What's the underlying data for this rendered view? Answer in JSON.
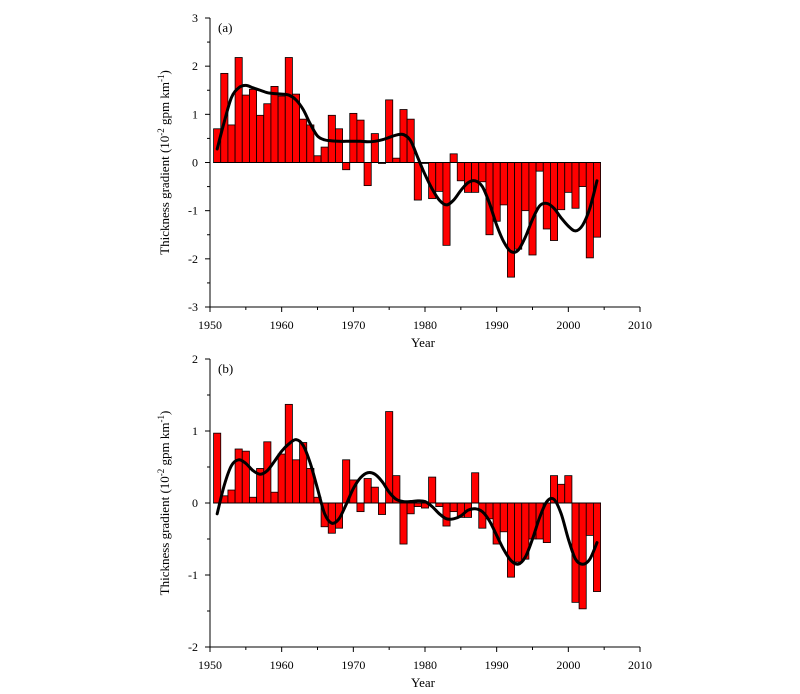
{
  "colors": {
    "bar_fill": "#ff0000",
    "bar_stroke": "#000000",
    "curve": "#000000",
    "axis": "#000000"
  },
  "chart_data": [
    {
      "type": "bar",
      "panel_label": "(a)",
      "xlabel": "Year",
      "ylabel_main": "Thickness gradient (10",
      "ylabel_exp1": "-2",
      "ylabel_mid": " gpm km",
      "ylabel_exp2": "-1",
      "ylabel_end": ")",
      "xlim": [
        1950,
        2010
      ],
      "ylim": [
        -3,
        3
      ],
      "xticks": [
        1950,
        1960,
        1970,
        1980,
        1990,
        2000,
        2010
      ],
      "yticks": [
        -3,
        -2,
        -1,
        0,
        1,
        2,
        3
      ],
      "grid": false,
      "legend": "none",
      "series": [
        {
          "type": "bar",
          "x": [
            1951,
            1952,
            1953,
            1954,
            1955,
            1956,
            1957,
            1958,
            1959,
            1960,
            1961,
            1962,
            1963,
            1964,
            1965,
            1966,
            1967,
            1968,
            1969,
            1970,
            1971,
            1972,
            1973,
            1974,
            1975,
            1976,
            1977,
            1978,
            1979,
            1980,
            1981,
            1982,
            1983,
            1984,
            1985,
            1986,
            1987,
            1988,
            1989,
            1990,
            1991,
            1992,
            1993,
            1994,
            1995,
            1996,
            1997,
            1998,
            1999,
            2000,
            2001,
            2002,
            2003,
            2004
          ],
          "values": [
            0.7,
            1.85,
            0.78,
            2.18,
            1.4,
            1.52,
            0.98,
            1.22,
            1.58,
            1.38,
            2.18,
            1.42,
            0.9,
            0.78,
            0.14,
            0.32,
            0.98,
            0.7,
            -0.15,
            1.02,
            0.88,
            -0.48,
            0.6,
            -0.02,
            1.3,
            0.09,
            1.1,
            0.9,
            -0.78,
            -0.02,
            -0.75,
            -0.6,
            -1.72,
            0.18,
            -0.38,
            -0.62,
            -0.62,
            -0.4,
            -1.5,
            -1.22,
            -0.88,
            -2.38,
            -1.8,
            -1.0,
            -1.92,
            -0.18,
            -1.38,
            -1.62,
            -0.98,
            -0.62,
            -0.95,
            -0.5,
            -1.98,
            -1.55
          ]
        },
        {
          "type": "line",
          "x": [
            1951,
            1952,
            1953,
            1954,
            1955,
            1956,
            1957,
            1958,
            1959,
            1960,
            1961,
            1962,
            1963,
            1964,
            1965,
            1966,
            1967,
            1968,
            1969,
            1970,
            1971,
            1972,
            1973,
            1974,
            1975,
            1976,
            1977,
            1978,
            1979,
            1980,
            1981,
            1982,
            1983,
            1984,
            1985,
            1986,
            1987,
            1988,
            1989,
            1990,
            1991,
            1992,
            1993,
            1994,
            1995,
            1996,
            1997,
            1998,
            1999,
            2000,
            2001,
            2002,
            2003,
            2004
          ],
          "values": [
            0.28,
            0.85,
            1.35,
            1.55,
            1.6,
            1.55,
            1.5,
            1.45,
            1.43,
            1.42,
            1.4,
            1.3,
            1.1,
            0.8,
            0.55,
            0.47,
            0.45,
            0.44,
            0.44,
            0.44,
            0.44,
            0.43,
            0.44,
            0.47,
            0.52,
            0.57,
            0.58,
            0.45,
            0.1,
            -0.25,
            -0.55,
            -0.78,
            -0.88,
            -0.78,
            -0.58,
            -0.42,
            -0.38,
            -0.5,
            -0.85,
            -1.3,
            -1.65,
            -1.85,
            -1.82,
            -1.55,
            -1.18,
            -0.9,
            -0.85,
            -0.95,
            -1.15,
            -1.32,
            -1.42,
            -1.3,
            -0.95,
            -0.38
          ]
        }
      ]
    },
    {
      "type": "bar",
      "panel_label": "(b)",
      "xlabel": "Year",
      "ylabel_main": "Thickness gradient (10",
      "ylabel_exp1": "-2",
      "ylabel_mid": " gpm km",
      "ylabel_exp2": "-1",
      "ylabel_end": ")",
      "xlim": [
        1950,
        2010
      ],
      "ylim": [
        -2,
        2
      ],
      "xticks": [
        1950,
        1960,
        1970,
        1980,
        1990,
        2000,
        2010
      ],
      "yticks": [
        -2,
        -1,
        0,
        1,
        2
      ],
      "grid": false,
      "legend": "none",
      "series": [
        {
          "type": "bar",
          "x": [
            1951,
            1952,
            1953,
            1954,
            1955,
            1956,
            1957,
            1958,
            1959,
            1960,
            1961,
            1962,
            1963,
            1964,
            1965,
            1966,
            1967,
            1968,
            1969,
            1970,
            1971,
            1972,
            1973,
            1974,
            1975,
            1976,
            1977,
            1978,
            1979,
            1980,
            1981,
            1982,
            1983,
            1984,
            1985,
            1986,
            1987,
            1988,
            1989,
            1990,
            1991,
            1992,
            1993,
            1994,
            1995,
            1996,
            1997,
            1998,
            1999,
            2000,
            2001,
            2002,
            2003,
            2004
          ],
          "values": [
            0.97,
            0.1,
            0.18,
            0.75,
            0.72,
            0.08,
            0.48,
            0.85,
            0.15,
            0.68,
            1.37,
            0.6,
            0.84,
            0.48,
            0.08,
            -0.33,
            -0.42,
            -0.35,
            0.6,
            0.32,
            -0.12,
            0.34,
            0.22,
            -0.16,
            1.27,
            0.38,
            -0.57,
            -0.15,
            -0.05,
            -0.07,
            0.36,
            -0.05,
            -0.32,
            -0.12,
            -0.2,
            -0.2,
            0.42,
            -0.35,
            -0.22,
            -0.57,
            -0.4,
            -1.03,
            -0.82,
            -0.78,
            -0.5,
            -0.5,
            -0.55,
            0.38,
            0.26,
            0.38,
            -1.38,
            -1.47,
            -0.45,
            -1.23
          ]
        },
        {
          "type": "line",
          "x": [
            1951,
            1952,
            1953,
            1954,
            1955,
            1956,
            1957,
            1958,
            1959,
            1960,
            1961,
            1962,
            1963,
            1964,
            1965,
            1966,
            1967,
            1968,
            1969,
            1970,
            1971,
            1972,
            1973,
            1974,
            1975,
            1976,
            1977,
            1978,
            1979,
            1980,
            1981,
            1982,
            1983,
            1984,
            1985,
            1986,
            1987,
            1988,
            1989,
            1990,
            1991,
            1992,
            1993,
            1994,
            1995,
            1996,
            1997,
            1998,
            1999,
            2000,
            2001,
            2002,
            2003,
            2004
          ],
          "values": [
            -0.15,
            0.25,
            0.52,
            0.6,
            0.55,
            0.45,
            0.4,
            0.45,
            0.58,
            0.72,
            0.82,
            0.88,
            0.8,
            0.55,
            0.2,
            -0.15,
            -0.28,
            -0.22,
            -0.02,
            0.2,
            0.35,
            0.42,
            0.4,
            0.3,
            0.15,
            0.05,
            0.02,
            0.02,
            0.03,
            0.02,
            -0.05,
            -0.15,
            -0.22,
            -0.22,
            -0.18,
            -0.1,
            -0.08,
            -0.12,
            -0.25,
            -0.45,
            -0.65,
            -0.8,
            -0.85,
            -0.75,
            -0.5,
            -0.2,
            0.02,
            0.05,
            -0.15,
            -0.5,
            -0.78,
            -0.85,
            -0.78,
            -0.55
          ]
        }
      ]
    }
  ]
}
